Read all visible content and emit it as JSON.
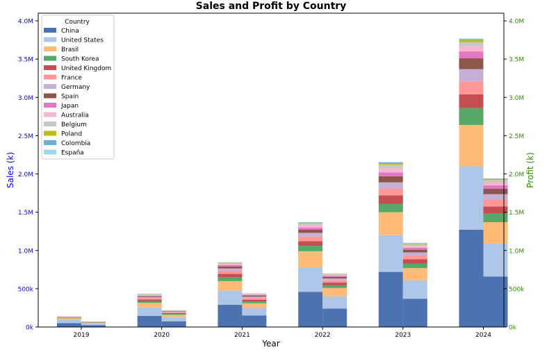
{
  "chart_data": {
    "type": "bar",
    "title": "Sales and Profit by Country",
    "xlabel": "Year",
    "ylabel_left": "Sales (k)",
    "ylabel_right": "Profit (k)",
    "categories": [
      "2019",
      "2020",
      "2021",
      "2022",
      "2023",
      "2024"
    ],
    "ylim": [
      0,
      4100
    ],
    "yticks": [
      {
        "value": 0,
        "label": "0k"
      },
      {
        "value": 500,
        "label": "500k"
      },
      {
        "value": 1000,
        "label": "1.0M"
      },
      {
        "value": 1500,
        "label": "1.5M"
      },
      {
        "value": 2000,
        "label": "2.0M"
      },
      {
        "value": 2500,
        "label": "2.5M"
      },
      {
        "value": 3000,
        "label": "3.0M"
      },
      {
        "value": 3500,
        "label": "3.5M"
      },
      {
        "value": 4000,
        "label": "4.0M"
      }
    ],
    "left_tick_color": "#0000ff",
    "right_tick_color": "#2e8b00",
    "legend": {
      "title": "Country",
      "placement": "upper-left"
    },
    "countries": [
      {
        "name": "China",
        "color": "#4c72b0"
      },
      {
        "name": "United States",
        "color": "#aec7e8"
      },
      {
        "name": "Brasil",
        "color": "#ffbb78"
      },
      {
        "name": "South Korea",
        "color": "#55a868"
      },
      {
        "name": "United Kingdom",
        "color": "#c44e52"
      },
      {
        "name": "France",
        "color": "#ff9896"
      },
      {
        "name": "Germany",
        "color": "#c5b0d5"
      },
      {
        "name": "Spain",
        "color": "#8c564b"
      },
      {
        "name": "Japan",
        "color": "#e377c2"
      },
      {
        "name": "Australia",
        "color": "#f7b6d2"
      },
      {
        "name": "Belgium",
        "color": "#c7c7c7"
      },
      {
        "name": "Poland",
        "color": "#bcbd22"
      },
      {
        "name": "Colombia",
        "color": "#6baed6"
      },
      {
        "name": "España",
        "color": "#9edae5"
      }
    ],
    "sales": [
      {
        "year": "2019",
        "values": [
          50,
          45,
          20,
          6,
          4,
          4,
          2,
          2,
          2,
          2,
          1,
          1,
          1,
          1
        ]
      },
      {
        "year": "2020",
        "values": [
          145,
          110,
          60,
          25,
          20,
          20,
          12,
          10,
          8,
          8,
          5,
          5,
          4,
          3
        ]
      },
      {
        "year": "2021",
        "values": [
          290,
          185,
          125,
          50,
          45,
          40,
          30,
          25,
          20,
          15,
          10,
          5,
          3,
          2
        ]
      },
      {
        "year": "2022",
        "values": [
          460,
          320,
          210,
          70,
          60,
          60,
          50,
          40,
          30,
          30,
          20,
          10,
          5,
          5
        ]
      },
      {
        "year": "2023",
        "values": [
          720,
          480,
          300,
          110,
          110,
          90,
          80,
          80,
          50,
          50,
          50,
          20,
          10,
          5
        ]
      },
      {
        "year": "2024",
        "values": [
          1270,
          830,
          540,
          220,
          180,
          170,
          160,
          140,
          90,
          70,
          50,
          30,
          10,
          10
        ]
      }
    ],
    "profit": [
      {
        "year": "2019",
        "values": [
          25,
          20,
          10,
          4,
          3,
          3,
          2,
          2,
          1,
          1,
          1,
          0,
          0,
          0
        ]
      },
      {
        "year": "2020",
        "values": [
          75,
          55,
          30,
          12,
          10,
          10,
          8,
          6,
          4,
          4,
          3,
          2,
          1,
          0
        ]
      },
      {
        "year": "2021",
        "values": [
          150,
          95,
          65,
          25,
          22,
          22,
          18,
          14,
          10,
          8,
          6,
          3,
          2,
          0
        ]
      },
      {
        "year": "2022",
        "values": [
          240,
          160,
          110,
          35,
          35,
          30,
          25,
          20,
          15,
          12,
          8,
          4,
          2,
          1
        ]
      },
      {
        "year": "2023",
        "values": [
          370,
          240,
          160,
          60,
          55,
          50,
          40,
          35,
          25,
          25,
          20,
          10,
          5,
          5
        ]
      },
      {
        "year": "2024",
        "values": [
          660,
          430,
          280,
          110,
          95,
          85,
          75,
          70,
          45,
          40,
          30,
          15,
          5,
          0
        ]
      }
    ]
  }
}
